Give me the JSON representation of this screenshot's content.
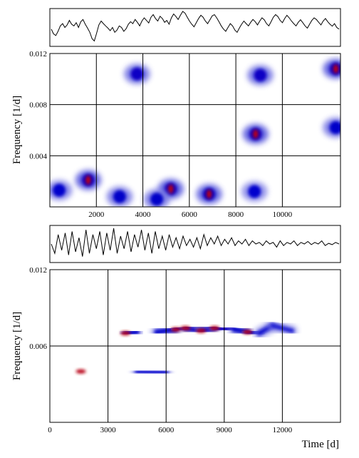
{
  "chart_data": [
    {
      "type": "line",
      "title": "",
      "xlabel": "",
      "ylabel": "",
      "note": "Top light curve (no axes labels)",
      "xlim": [
        0,
        12500
      ],
      "series": [
        {
          "values": [
            0.45,
            0.3,
            0.25,
            0.38,
            0.55,
            0.62,
            0.5,
            0.58,
            0.72,
            0.6,
            0.55,
            0.65,
            0.5,
            0.68,
            0.75,
            0.6,
            0.48,
            0.35,
            0.15,
            0.08,
            0.32,
            0.58,
            0.7,
            0.62,
            0.55,
            0.48,
            0.4,
            0.5,
            0.35,
            0.42,
            0.55,
            0.5,
            0.38,
            0.46,
            0.6,
            0.68,
            0.62,
            0.75,
            0.66,
            0.55,
            0.7,
            0.8,
            0.72,
            0.64,
            0.82,
            0.9,
            0.78,
            0.7,
            0.85,
            0.78,
            0.66,
            0.72,
            0.6,
            0.8,
            0.92,
            0.84,
            0.75,
            0.88,
            1.0,
            0.95,
            0.82,
            0.7,
            0.6,
            0.52,
            0.65,
            0.78,
            0.88,
            0.82,
            0.7,
            0.62,
            0.74,
            0.86,
            0.9,
            0.8,
            0.68,
            0.55,
            0.45,
            0.38,
            0.5,
            0.62,
            0.55,
            0.42,
            0.35,
            0.48,
            0.6,
            0.7,
            0.62,
            0.55,
            0.66,
            0.75,
            0.68,
            0.58,
            0.7,
            0.8,
            0.74,
            0.62,
            0.55,
            0.68,
            0.82,
            0.9,
            0.84,
            0.72,
            0.65,
            0.78,
            0.88,
            0.8,
            0.7,
            0.62,
            0.55,
            0.66,
            0.74,
            0.65,
            0.55,
            0.48,
            0.6,
            0.72,
            0.8,
            0.75,
            0.66,
            0.58,
            0.7,
            0.78,
            0.68,
            0.6,
            0.54,
            0.62,
            0.5,
            0.45
          ]
        }
      ]
    },
    {
      "type": "heatmap",
      "title": "",
      "xlabel": "",
      "ylabel": "Frequency [1/d]",
      "xlim": [
        0,
        12500
      ],
      "ylim": [
        0,
        0.012
      ],
      "xticks": [
        "2000",
        "4000",
        "6000",
        "8000",
        "10000"
      ],
      "xtick_values": [
        2000,
        4000,
        6000,
        8000,
        10000
      ],
      "yticks": [
        "0.004",
        "0.008",
        "0.012"
      ],
      "ytick_values": [
        0.004,
        0.008,
        0.012
      ],
      "grid": true,
      "colormap": [
        "#ffffff",
        "#0000cc",
        "#cc0000"
      ],
      "blobs": [
        {
          "x": 1650,
          "y": 0.0021,
          "intensity": 1.0
        },
        {
          "x": 3750,
          "y": 0.0104,
          "intensity": 0.7
        },
        {
          "x": 5200,
          "y": 0.0014,
          "intensity": 1.0
        },
        {
          "x": 6850,
          "y": 0.001,
          "intensity": 0.9
        },
        {
          "x": 8850,
          "y": 0.0057,
          "intensity": 1.0
        },
        {
          "x": 9050,
          "y": 0.0103,
          "intensity": 0.7
        },
        {
          "x": 12300,
          "y": 0.0108,
          "intensity": 1.0
        },
        {
          "x": 12300,
          "y": 0.0062,
          "intensity": 0.6
        },
        {
          "x": 3000,
          "y": 0.0008,
          "intensity": 0.6
        },
        {
          "x": 4600,
          "y": 0.0006,
          "intensity": 0.6
        },
        {
          "x": 400,
          "y": 0.0013,
          "intensity": 0.5
        },
        {
          "x": 8800,
          "y": 0.0012,
          "intensity": 0.4
        }
      ]
    },
    {
      "type": "line",
      "title": "",
      "xlabel": "",
      "ylabel": "",
      "note": "Bottom light curve (no axes labels)",
      "xlim": [
        0,
        15000
      ],
      "series": [
        {
          "values": [
            0.5,
            0.2,
            0.8,
            0.3,
            0.85,
            0.15,
            0.9,
            0.25,
            0.7,
            0.1,
            0.95,
            0.2,
            0.8,
            0.35,
            0.9,
            0.15,
            0.85,
            0.3,
            1.0,
            0.2,
            0.75,
            0.35,
            0.9,
            0.25,
            0.8,
            0.4,
            0.95,
            0.3,
            0.85,
            0.2,
            0.9,
            0.35,
            0.75,
            0.3,
            0.8,
            0.4,
            0.7,
            0.35,
            0.75,
            0.45,
            0.65,
            0.4,
            0.7,
            0.35,
            0.8,
            0.45,
            0.7,
            0.5,
            0.75,
            0.45,
            0.65,
            0.5,
            0.7,
            0.45,
            0.6,
            0.5,
            0.65,
            0.45,
            0.6,
            0.5,
            0.55,
            0.45,
            0.6,
            0.5,
            0.55,
            0.4,
            0.6,
            0.45,
            0.55,
            0.5,
            0.6,
            0.45,
            0.55,
            0.5,
            0.58,
            0.48,
            0.55,
            0.5,
            0.6,
            0.45,
            0.52,
            0.48,
            0.55,
            0.5
          ]
        }
      ]
    },
    {
      "type": "heatmap",
      "title": "",
      "xlabel": "Time [d]",
      "ylabel": "Frequency [1/d]",
      "xlim": [
        0,
        15000
      ],
      "ylim": [
        0,
        0.012
      ],
      "xticks": [
        "0",
        "3000",
        "6000",
        "9000",
        "12000"
      ],
      "xtick_values": [
        0,
        3000,
        6000,
        9000,
        12000
      ],
      "yticks": [
        "0.006",
        "0.012"
      ],
      "ytick_values": [
        0.006,
        0.012
      ],
      "grid": true,
      "colormap": [
        "#ffffff",
        "#0000cc",
        "#cc0000"
      ],
      "ridges": [
        {
          "x": [
            800,
            1600,
            2500,
            3500,
            4500,
            6000,
            7500,
            9000,
            10500,
            11500
          ],
          "y": [
            0.004,
            0.004,
            0.004,
            0.004,
            0.004,
            0.0039,
            0.0039,
            0.0039,
            0.0039,
            0.0039
          ],
          "intensity": [
            0.6,
            1.0,
            0.75,
            0.7,
            0.55,
            0.45,
            0.4,
            0.35,
            0.3,
            0.2
          ]
        },
        {
          "x": [
            3900,
            4500,
            5500,
            6500,
            7000,
            7800,
            8500,
            9500,
            10200,
            10800,
            11500,
            12500,
            14200,
            14800
          ],
          "y": [
            0.007,
            0.0071,
            0.0071,
            0.0073,
            0.0074,
            0.0072,
            0.0074,
            0.0073,
            0.0071,
            0.007,
            0.0076,
            0.0072,
            0.0072,
            0.0072
          ],
          "intensity": [
            0.9,
            0.85,
            0.8,
            0.9,
            1.0,
            0.95,
            1.0,
            0.85,
            0.95,
            0.75,
            0.55,
            0.3,
            0.5,
            0.3
          ]
        }
      ]
    }
  ]
}
